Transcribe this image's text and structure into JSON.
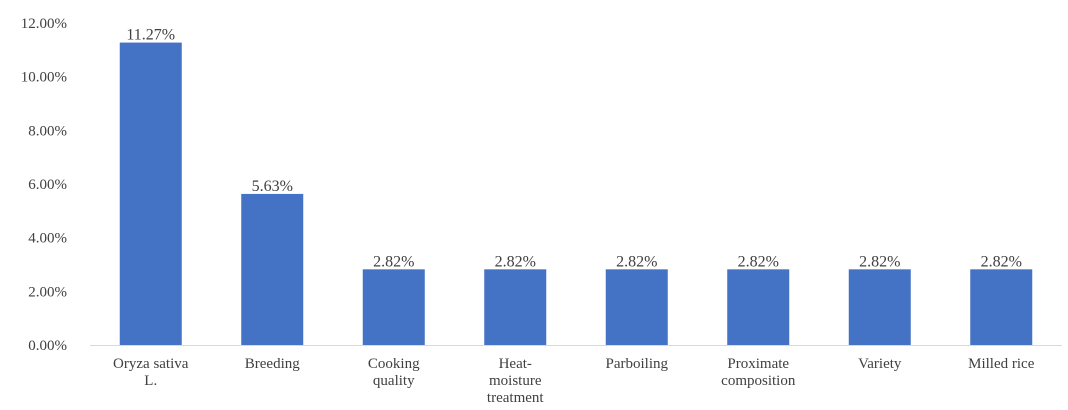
{
  "chart_data": {
    "type": "bar",
    "categories": [
      "Oryza sativa L.",
      "Breeding",
      "Cooking quality",
      "Heat-moisture treatment",
      "Parboiling",
      "Proximate composition",
      "Variety",
      "Milled rice"
    ],
    "category_lines": [
      [
        "Oryza sativa",
        "L."
      ],
      [
        "Breeding"
      ],
      [
        "Cooking",
        "quality"
      ],
      [
        "Heat-",
        "moisture",
        "treatment"
      ],
      [
        "Parboiling"
      ],
      [
        "Proximate",
        "composition"
      ],
      [
        "Variety"
      ],
      [
        "Milled rice"
      ]
    ],
    "values": [
      11.27,
      5.63,
      2.82,
      2.82,
      2.82,
      2.82,
      2.82,
      2.82
    ],
    "data_labels": [
      "11.27%",
      "5.63%",
      "2.82%",
      "2.82%",
      "2.82%",
      "2.82%",
      "2.82%",
      "2.82%"
    ],
    "yticks": [
      0,
      2,
      4,
      6,
      8,
      10,
      12
    ],
    "ytick_labels": [
      "0.00%",
      "2.00%",
      "4.00%",
      "6.00%",
      "8.00%",
      "10.00%",
      "12.00%"
    ],
    "ylim": [
      0,
      12
    ],
    "title": "",
    "xlabel": "",
    "ylabel": "",
    "grid": false,
    "bar_color": "#4472c4",
    "axis_color": "#d9d9d9"
  }
}
